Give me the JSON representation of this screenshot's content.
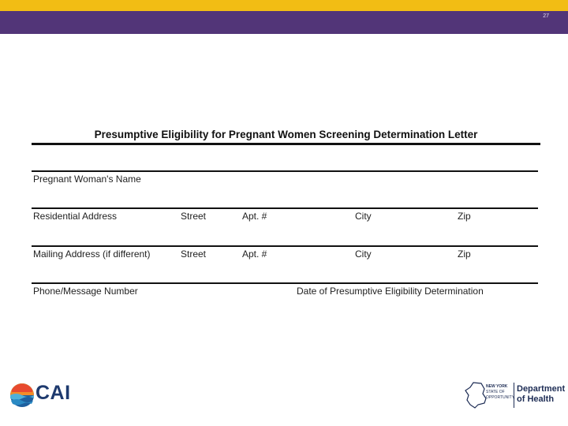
{
  "header": {
    "slide_number": "27"
  },
  "form": {
    "title": "Presumptive Eligibility for Pregnant Women Screening Determination Letter",
    "name_row": {
      "label": "Pregnant Woman's Name"
    },
    "residential_row": {
      "label": "Residential Address",
      "street": "Street",
      "apt": "Apt. #",
      "city": "City",
      "zip": "Zip"
    },
    "mailing_row": {
      "label": "Mailing Address (if different)",
      "street": "Street",
      "apt": "Apt. #",
      "city": "City",
      "zip": "Zip"
    },
    "phone_row": {
      "label": "Phone/Message Number",
      "date_label": "Date of Presumptive Eligibility Determination"
    }
  },
  "footer": {
    "cai_logo": {
      "text": "CAI"
    },
    "nys_logo": {
      "line1": "NEW YORK",
      "line2": "STATE OF",
      "line3": "OPPORTUNITY.",
      "line4": "Department",
      "line5": "of Health"
    }
  },
  "colors": {
    "gold": "#f2bd14",
    "purple": "#523578",
    "logo_navy": "#1e2d55"
  }
}
